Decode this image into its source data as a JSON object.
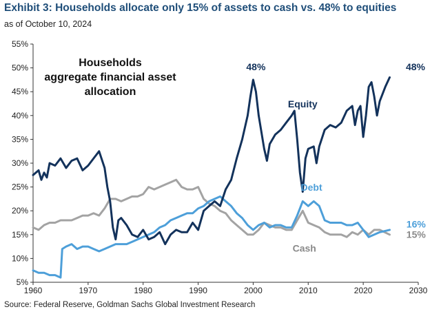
{
  "title": "Exhibit 3: Households allocate only 15% of assets to cash vs. 48% to equities",
  "subtitle": "as of October 10, 2024",
  "source": "Source: Federal Reserve, Goldman Sachs Global Investment Research",
  "colors": {
    "equity": "#13325b",
    "debt": "#4d9fd9",
    "cash": "#a3a3a3",
    "axis": "#333333"
  },
  "chart_data": {
    "type": "line",
    "title": "Households aggregate financial asset allocation",
    "title_lines": [
      "Households",
      "aggregate financial asset",
      "allocation"
    ],
    "xlim": [
      1960,
      2030
    ],
    "ylim": [
      5,
      55
    ],
    "x_ticks": [
      1960,
      1970,
      1980,
      1990,
      2000,
      2010,
      2020,
      2030
    ],
    "y_ticks": [
      5,
      10,
      15,
      20,
      25,
      30,
      35,
      40,
      45,
      50,
      55
    ],
    "y_tick_labels": [
      "5%",
      "10%",
      "15%",
      "20%",
      "25%",
      "30%",
      "35%",
      "40%",
      "45%",
      "50%",
      "55%"
    ],
    "x_tick_labels": [
      "1960",
      "1970",
      "1980",
      "1990",
      "2000",
      "2010",
      "2020",
      "2030"
    ],
    "grid": false,
    "series": [
      {
        "name": "Equity",
        "color": "#13325b",
        "points": [
          [
            1960,
            27.5
          ],
          [
            1961,
            28.5
          ],
          [
            1961.5,
            26.5
          ],
          [
            1962,
            28
          ],
          [
            1962.5,
            27
          ],
          [
            1963,
            30
          ],
          [
            1964,
            29.5
          ],
          [
            1965,
            31
          ],
          [
            1966,
            29
          ],
          [
            1967,
            30.5
          ],
          [
            1968,
            31
          ],
          [
            1969,
            28.5
          ],
          [
            1970,
            29.5
          ],
          [
            1971,
            31
          ],
          [
            1972,
            32.5
          ],
          [
            1973,
            29
          ],
          [
            1973.5,
            25
          ],
          [
            1974,
            22
          ],
          [
            1974.5,
            16.5
          ],
          [
            1975,
            14
          ],
          [
            1975.5,
            18
          ],
          [
            1976,
            18.5
          ],
          [
            1977,
            17
          ],
          [
            1978,
            15
          ],
          [
            1979,
            14.5
          ],
          [
            1980,
            16
          ],
          [
            1981,
            14
          ],
          [
            1982,
            14.5
          ],
          [
            1983,
            15.5
          ],
          [
            1984,
            13
          ],
          [
            1985,
            15
          ],
          [
            1986,
            16
          ],
          [
            1987,
            15.5
          ],
          [
            1988,
            15.5
          ],
          [
            1989,
            17.5
          ],
          [
            1990,
            16
          ],
          [
            1991,
            20
          ],
          [
            1992,
            21
          ],
          [
            1993,
            22
          ],
          [
            1994,
            21
          ],
          [
            1995,
            24.5
          ],
          [
            1996,
            26.5
          ],
          [
            1997,
            31
          ],
          [
            1998,
            35
          ],
          [
            1999,
            40
          ],
          [
            1999.5,
            44
          ],
          [
            2000,
            47.5
          ],
          [
            2000.5,
            45
          ],
          [
            2001,
            40
          ],
          [
            2002,
            33
          ],
          [
            2002.5,
            30.5
          ],
          [
            2003,
            34
          ],
          [
            2004,
            36
          ],
          [
            2005,
            37
          ],
          [
            2006,
            38.5
          ],
          [
            2007,
            40
          ],
          [
            2007.5,
            41
          ],
          [
            2008,
            35
          ],
          [
            2008.5,
            28
          ],
          [
            2009,
            24
          ],
          [
            2009.5,
            31
          ],
          [
            2010,
            33
          ],
          [
            2011,
            33.5
          ],
          [
            2011.5,
            30
          ],
          [
            2012,
            33.5
          ],
          [
            2013,
            37
          ],
          [
            2014,
            38
          ],
          [
            2015,
            37.5
          ],
          [
            2016,
            38.5
          ],
          [
            2017,
            41
          ],
          [
            2018,
            42
          ],
          [
            2018.5,
            38
          ],
          [
            2019,
            41
          ],
          [
            2019.5,
            42
          ],
          [
            2020,
            35.5
          ],
          [
            2020.5,
            40
          ],
          [
            2021,
            46
          ],
          [
            2021.5,
            47
          ],
          [
            2022,
            44
          ],
          [
            2022.5,
            40
          ],
          [
            2023,
            43
          ],
          [
            2023.5,
            44.5
          ],
          [
            2024,
            46
          ],
          [
            2024.8,
            48
          ]
        ]
      },
      {
        "name": "Debt",
        "color": "#4d9fd9",
        "points": [
          [
            1960,
            7.5
          ],
          [
            1961,
            7
          ],
          [
            1962,
            7
          ],
          [
            1963,
            6.5
          ],
          [
            1964,
            6.5
          ],
          [
            1965,
            6
          ],
          [
            1965.3,
            12
          ],
          [
            1966,
            12.5
          ],
          [
            1967,
            13
          ],
          [
            1968,
            12
          ],
          [
            1969,
            12.5
          ],
          [
            1970,
            12.5
          ],
          [
            1971,
            12
          ],
          [
            1972,
            11.5
          ],
          [
            1973,
            12
          ],
          [
            1974,
            12.5
          ],
          [
            1975,
            13
          ],
          [
            1976,
            13
          ],
          [
            1977,
            13
          ],
          [
            1978,
            13.5
          ],
          [
            1979,
            14
          ],
          [
            1980,
            14.5
          ],
          [
            1981,
            15
          ],
          [
            1982,
            15.5
          ],
          [
            1983,
            16.5
          ],
          [
            1984,
            17
          ],
          [
            1985,
            18
          ],
          [
            1986,
            18.5
          ],
          [
            1987,
            19
          ],
          [
            1988,
            19.5
          ],
          [
            1989,
            19.5
          ],
          [
            1990,
            20.5
          ],
          [
            1991,
            21
          ],
          [
            1992,
            22
          ],
          [
            1993,
            22.5
          ],
          [
            1994,
            23
          ],
          [
            1995,
            22
          ],
          [
            1996,
            21
          ],
          [
            1997,
            19.5
          ],
          [
            1998,
            18.5
          ],
          [
            1999,
            17
          ],
          [
            2000,
            16
          ],
          [
            2001,
            17
          ],
          [
            2002,
            17.5
          ],
          [
            2003,
            16.5
          ],
          [
            2004,
            17
          ],
          [
            2005,
            17
          ],
          [
            2006,
            16.5
          ],
          [
            2007,
            16.5
          ],
          [
            2008,
            19
          ],
          [
            2009,
            22
          ],
          [
            2010,
            21
          ],
          [
            2011,
            22
          ],
          [
            2012,
            21
          ],
          [
            2013,
            18
          ],
          [
            2014,
            17.5
          ],
          [
            2015,
            17.5
          ],
          [
            2016,
            17.5
          ],
          [
            2017,
            17
          ],
          [
            2018,
            17
          ],
          [
            2019,
            17.5
          ],
          [
            2020,
            16
          ],
          [
            2021,
            14.5
          ],
          [
            2022,
            15
          ],
          [
            2023,
            15.5
          ],
          [
            2024.8,
            16
          ]
        ]
      },
      {
        "name": "Cash",
        "color": "#a3a3a3",
        "points": [
          [
            1960,
            16.5
          ],
          [
            1961,
            16
          ],
          [
            1962,
            17
          ],
          [
            1963,
            17.5
          ],
          [
            1964,
            17.5
          ],
          [
            1965,
            18
          ],
          [
            1966,
            18
          ],
          [
            1967,
            18
          ],
          [
            1968,
            18.5
          ],
          [
            1969,
            19
          ],
          [
            1970,
            19
          ],
          [
            1971,
            19.5
          ],
          [
            1972,
            19
          ],
          [
            1973,
            20.5
          ],
          [
            1974,
            22.5
          ],
          [
            1975,
            22.5
          ],
          [
            1976,
            22
          ],
          [
            1977,
            22.5
          ],
          [
            1978,
            23
          ],
          [
            1979,
            23
          ],
          [
            1980,
            23.5
          ],
          [
            1981,
            25
          ],
          [
            1982,
            24.5
          ],
          [
            1983,
            25
          ],
          [
            1984,
            25.5
          ],
          [
            1985,
            26
          ],
          [
            1986,
            26.5
          ],
          [
            1987,
            25
          ],
          [
            1988,
            24.5
          ],
          [
            1989,
            24.5
          ],
          [
            1990,
            25
          ],
          [
            1991,
            22.5
          ],
          [
            1992,
            21.5
          ],
          [
            1993,
            21
          ],
          [
            1994,
            20
          ],
          [
            1995,
            19.5
          ],
          [
            1996,
            18
          ],
          [
            1997,
            17
          ],
          [
            1998,
            16
          ],
          [
            1999,
            15
          ],
          [
            2000,
            15
          ],
          [
            2001,
            16
          ],
          [
            2002,
            17.5
          ],
          [
            2003,
            17
          ],
          [
            2004,
            16.5
          ],
          [
            2005,
            16.5
          ],
          [
            2006,
            16
          ],
          [
            2007,
            16
          ],
          [
            2008,
            18
          ],
          [
            2009,
            20
          ],
          [
            2010,
            17.5
          ],
          [
            2011,
            17
          ],
          [
            2012,
            16.5
          ],
          [
            2013,
            15.5
          ],
          [
            2014,
            15
          ],
          [
            2015,
            15
          ],
          [
            2016,
            15
          ],
          [
            2017,
            14.5
          ],
          [
            2018,
            15.5
          ],
          [
            2019,
            15
          ],
          [
            2020,
            16
          ],
          [
            2021,
            15
          ],
          [
            2022,
            16
          ],
          [
            2023,
            16
          ],
          [
            2024.8,
            15
          ]
        ]
      }
    ],
    "annotations": [
      {
        "text": "48%",
        "x": 2000.5,
        "y": 49.5,
        "color": "#13325b"
      },
      {
        "text": "48%",
        "x": 2029.5,
        "y": 49.5,
        "color": "#13325b"
      },
      {
        "text": "Equity",
        "x": 2009,
        "y": 41.7,
        "color": "#13325b"
      },
      {
        "text": "Debt",
        "x": 2010.6,
        "y": 24.2,
        "color": "#4d9fd9"
      },
      {
        "text": "Cash",
        "x": 2009.3,
        "y": 11.4,
        "color": "#8a8a8a"
      },
      {
        "text": "16%",
        "x": 2029.6,
        "y": 16.5,
        "color": "#4d9fd9"
      },
      {
        "text": "15%",
        "x": 2029.6,
        "y": 14.3,
        "color": "#8a8a8a"
      }
    ]
  }
}
